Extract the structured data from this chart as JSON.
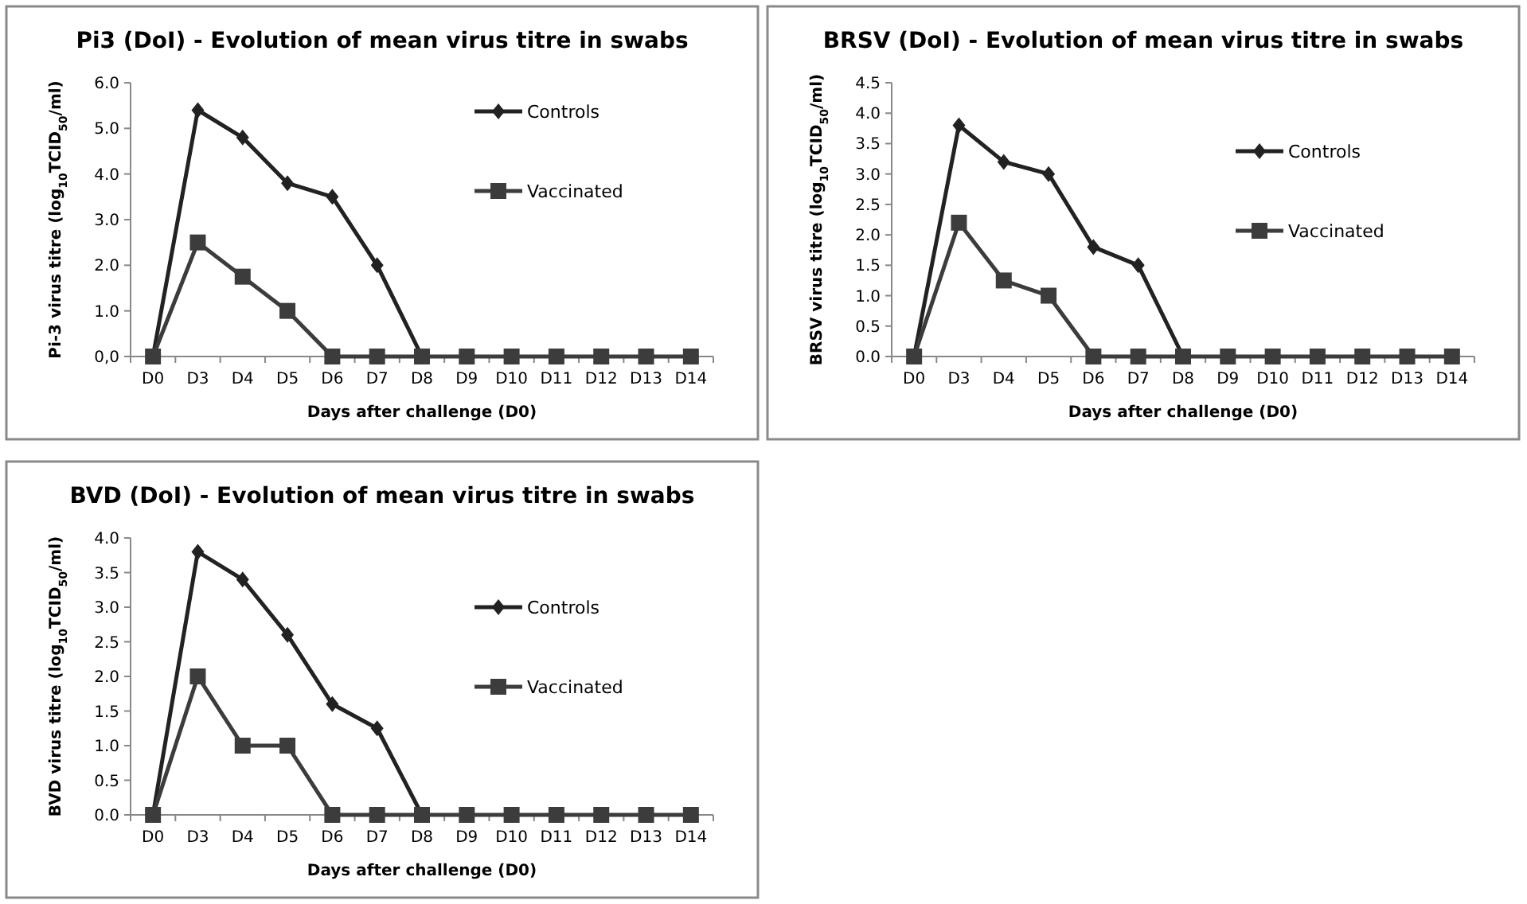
{
  "chart_data": [
    {
      "type": "line",
      "title": "Pi3 (DoI) - Evolution of mean virus titre in swabs",
      "xlabel": "Days after challenge (D0)",
      "ylabel": "Pi-3 virus titre (log$_{10}$TCID$_{50}$/ml)",
      "categories": [
        "D0",
        "D3",
        "D4",
        "D5",
        "D6",
        "D7",
        "D8",
        "D9",
        "D10",
        "D11",
        "D12",
        "D13",
        "D14"
      ],
      "ylim": [
        0,
        6
      ],
      "yticks": [
        {
          "value": 0,
          "label": "0,0"
        },
        {
          "value": 1,
          "label": "1.0"
        },
        {
          "value": 2,
          "label": "2.0"
        },
        {
          "value": 3,
          "label": "3.0"
        },
        {
          "value": 4,
          "label": "4.0"
        },
        {
          "value": 5,
          "label": "5.0"
        },
        {
          "value": 6,
          "label": "6.0"
        }
      ],
      "legend": "top right",
      "grid": false,
      "series": [
        {
          "name": "Controls",
          "color": "#222222",
          "marker": "diamond",
          "values": [
            0,
            5.4,
            4.8,
            3.8,
            3.5,
            2.0,
            0,
            null,
            null,
            null,
            null,
            null,
            null
          ]
        },
        {
          "name": "Vaccinated",
          "color": "#3c3c3c",
          "marker": "square",
          "values": [
            0,
            2.5,
            1.75,
            1.0,
            0,
            0,
            0,
            0,
            0,
            0,
            0,
            0,
            0
          ]
        }
      ]
    },
    {
      "type": "line",
      "title": "BRSV (DoI) - Evolution of mean virus titre in swabs",
      "xlabel": "Days after challenge (D0)",
      "ylabel": "BRSV virus titre (log$_{10}$TCID$_{50}$/ml)",
      "categories": [
        "D0",
        "D3",
        "D4",
        "D5",
        "D6",
        "D7",
        "D8",
        "D9",
        "D10",
        "D11",
        "D12",
        "D13",
        "D14"
      ],
      "ylim": [
        0,
        4.5
      ],
      "yticks": [
        {
          "value": 0,
          "label": "0.0"
        },
        {
          "value": 0.5,
          "label": "0.5"
        },
        {
          "value": 1,
          "label": "1.0"
        },
        {
          "value": 1.5,
          "label": "1.5"
        },
        {
          "value": 2,
          "label": "2.0"
        },
        {
          "value": 2.5,
          "label": "2.5"
        },
        {
          "value": 3,
          "label": "3.0"
        },
        {
          "value": 3.5,
          "label": "3.5"
        },
        {
          "value": 4,
          "label": "4.0"
        },
        {
          "value": 4.5,
          "label": "4.5"
        }
      ],
      "legend": "right",
      "grid": false,
      "series": [
        {
          "name": "Controls",
          "color": "#222222",
          "marker": "diamond",
          "values": [
            0,
            3.8,
            3.2,
            3.0,
            1.8,
            1.5,
            0,
            null,
            null,
            null,
            null,
            null,
            null
          ]
        },
        {
          "name": "Vaccinated",
          "color": "#3c3c3c",
          "marker": "square",
          "values": [
            0,
            2.2,
            1.25,
            1.0,
            0,
            0,
            0,
            0,
            0,
            0,
            0,
            0,
            0
          ]
        }
      ]
    },
    {
      "type": "line",
      "title": "BVD (DoI) - Evolution of mean virus titre in swabs",
      "xlabel": "Days after challenge (D0)",
      "ylabel": "BVD virus titre (log$_{10}$TCID$_{50}$/ml)",
      "categories": [
        "D0",
        "D3",
        "D4",
        "D5",
        "D6",
        "D7",
        "D8",
        "D9",
        "D10",
        "D11",
        "D12",
        "D13",
        "D14"
      ],
      "ylim": [
        0,
        4
      ],
      "yticks": [
        {
          "value": 0,
          "label": "0.0"
        },
        {
          "value": 0.5,
          "label": "0.5"
        },
        {
          "value": 1,
          "label": "1.0"
        },
        {
          "value": 1.5,
          "label": "1.5"
        },
        {
          "value": 2,
          "label": "2.0"
        },
        {
          "value": 2.5,
          "label": "2.5"
        },
        {
          "value": 3,
          "label": "3.0"
        },
        {
          "value": 3.5,
          "label": "3.5"
        },
        {
          "value": 4,
          "label": "4.0"
        }
      ],
      "legend": "right",
      "grid": false,
      "series": [
        {
          "name": "Controls",
          "color": "#222222",
          "marker": "diamond",
          "values": [
            0,
            3.8,
            3.4,
            2.6,
            1.6,
            1.25,
            0,
            null,
            null,
            null,
            null,
            null,
            null
          ]
        },
        {
          "name": "Vaccinated",
          "color": "#3c3c3c",
          "marker": "square",
          "values": [
            0,
            2.0,
            1.0,
            1.0,
            0,
            0,
            0,
            0,
            0,
            0,
            0,
            0,
            0
          ]
        }
      ]
    }
  ]
}
